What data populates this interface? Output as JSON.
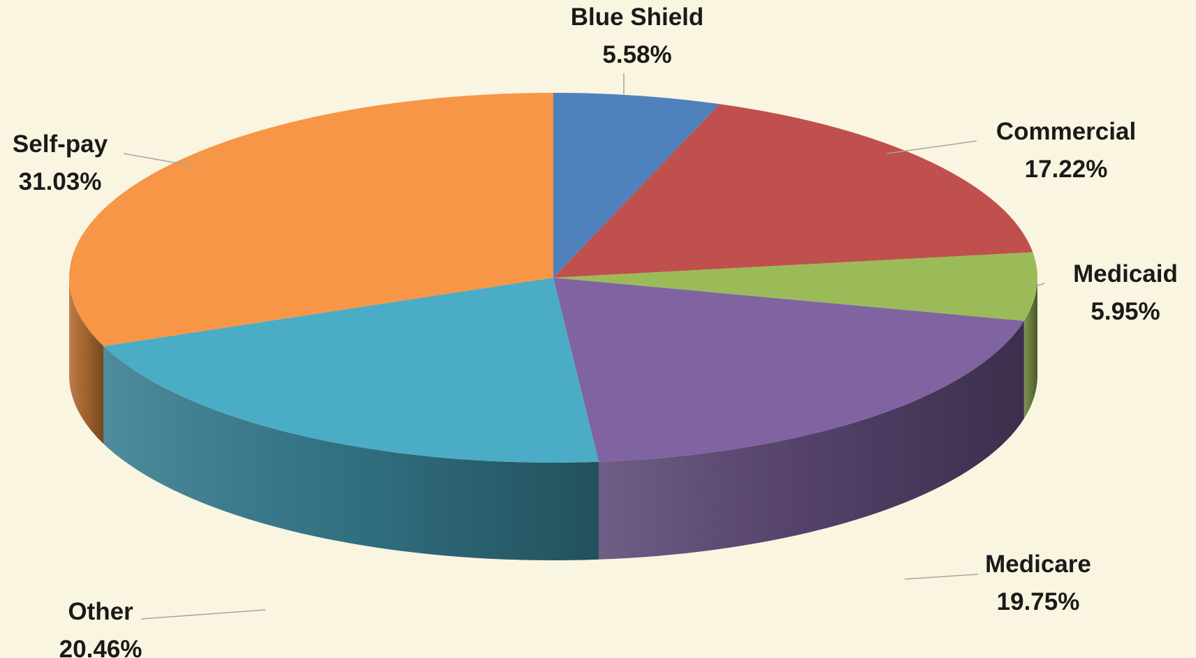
{
  "chart_data": {
    "type": "pie",
    "style": "3d",
    "title": "",
    "legend": "none",
    "categories": [
      "Blue Shield",
      "Commercial",
      "Medicaid",
      "Medicare",
      "Other",
      "Self-pay"
    ],
    "values": [
      5.58,
      17.22,
      5.95,
      19.75,
      20.46,
      31.03
    ],
    "value_labels": [
      "5.58%",
      "17.22%",
      "5.95%",
      "19.75%",
      "20.46%",
      "31.03%"
    ],
    "colors": [
      "#4F81BD",
      "#C0504D",
      "#9BBB59",
      "#8064A2",
      "#4BACC6",
      "#F79646"
    ],
    "background": "#FAF5E0"
  }
}
